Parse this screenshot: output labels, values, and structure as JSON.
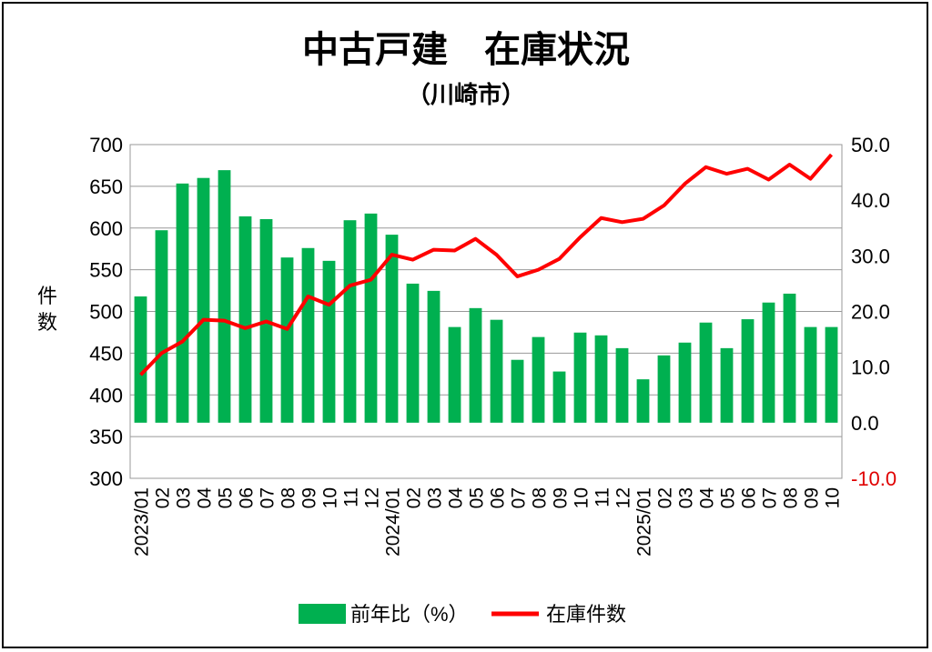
{
  "chart_data": {
    "type": "bar+line",
    "title": "中古戸建　在庫状況",
    "subtitle": "（川崎市）",
    "ylabel": "件数",
    "ylim": [
      300,
      700
    ],
    "yticks": [
      "300",
      "350",
      "400",
      "450",
      "500",
      "550",
      "600",
      "650",
      "700"
    ],
    "y2lim": [
      -10,
      50
    ],
    "y2ticks": [
      "-10.0",
      "0.0",
      "10.0",
      "20.0",
      "30.0",
      "40.0",
      "50.0"
    ],
    "y2_negative_color": "#e00000",
    "categories": [
      "2023/01",
      "02",
      "03",
      "04",
      "05",
      "06",
      "07",
      "08",
      "09",
      "10",
      "11",
      "12",
      "2024/01",
      "02",
      "03",
      "04",
      "05",
      "06",
      "07",
      "08",
      "09",
      "10",
      "11",
      "12",
      "2025/01",
      "02",
      "03",
      "04",
      "05",
      "06",
      "07",
      "08",
      "09",
      "10"
    ],
    "series": [
      {
        "name": "前年比（%）",
        "type": "bar",
        "axis": "right",
        "color": "#00b050",
        "values": [
          22.7,
          34.6,
          43.0,
          44.0,
          45.4,
          37.1,
          36.6,
          29.7,
          31.4,
          29.1,
          36.4,
          37.6,
          33.8,
          25.0,
          23.7,
          17.2,
          20.6,
          18.5,
          11.3,
          15.4,
          9.2,
          16.2,
          15.7,
          13.4,
          7.8,
          12.1,
          14.4,
          18.0,
          13.4,
          18.6,
          21.6,
          23.2,
          17.2,
          17.2
        ]
      },
      {
        "name": "在庫件数",
        "type": "line",
        "axis": "left",
        "color": "#ff0000",
        "values": [
          424,
          450,
          464,
          490,
          489,
          480,
          488,
          479,
          518,
          508,
          531,
          538,
          568,
          562,
          574,
          573,
          587,
          568,
          542,
          550,
          563,
          589,
          612,
          607,
          611,
          627,
          653,
          673,
          665,
          671,
          658,
          676,
          659,
          688
        ]
      }
    ],
    "legend": "bottom",
    "grid": true
  }
}
